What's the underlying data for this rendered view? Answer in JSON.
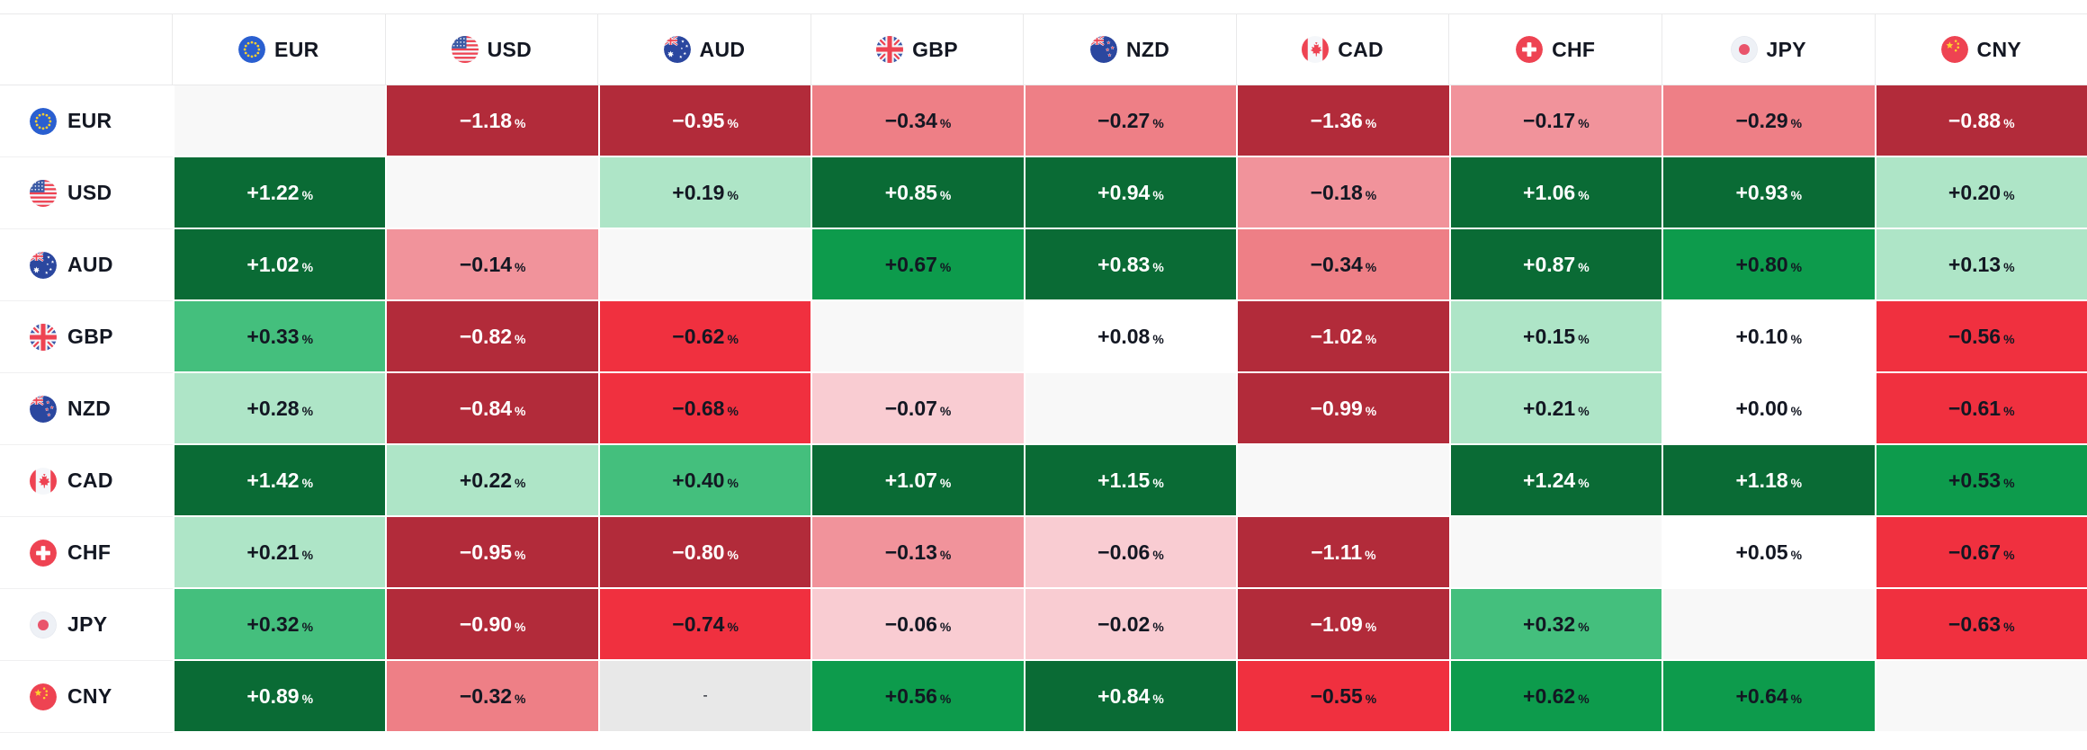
{
  "widget": {
    "unit_suffix": "%",
    "na_text": "-"
  },
  "currencies": [
    "EUR",
    "USD",
    "AUD",
    "GBP",
    "NZD",
    "CAD",
    "CHF",
    "JPY",
    "CNY"
  ],
  "icons": [
    "eur-flag-icon",
    "usd-flag-icon",
    "aud-flag-icon",
    "gbp-flag-icon",
    "nzd-flag-icon",
    "cad-flag-icon",
    "chf-flag-icon",
    "jpy-flag-icon",
    "cny-flag-icon"
  ],
  "palette": {
    "g5": {
      "bg": "#0a6b35",
      "fg": "#ffffff"
    },
    "g4": {
      "bg": "#0d9b4c",
      "fg": "#131722"
    },
    "g3": {
      "bg": "#44bf7d",
      "fg": "#131722"
    },
    "g2": {
      "bg": "#aee5c7",
      "fg": "#131722"
    },
    "n0": {
      "bg": "#ffffff",
      "fg": "#131722"
    },
    "p1": {
      "bg": "#f9ccd2",
      "fg": "#131722"
    },
    "p2": {
      "bg": "#f1939b",
      "fg": "#131722"
    },
    "p3": {
      "bg": "#ee7f86",
      "fg": "#131722"
    },
    "r4": {
      "bg": "#f0303f",
      "fg": "#131722"
    },
    "r5": {
      "bg": "#b22b3a",
      "fg": "#ffffff"
    },
    "diag": {
      "bg": "#f8f8f8",
      "fg": "#131722"
    },
    "na": {
      "bg": "#e8e8e8",
      "fg": "#131722"
    }
  },
  "matrix": {
    "rows": [
      {
        "code": "EUR",
        "cells": [
          {
            "text": "",
            "level": "diag"
          },
          {
            "text": "−1.18",
            "level": "r5"
          },
          {
            "text": "−0.95",
            "level": "r5"
          },
          {
            "text": "−0.34",
            "level": "p3"
          },
          {
            "text": "−0.27",
            "level": "p3"
          },
          {
            "text": "−1.36",
            "level": "r5"
          },
          {
            "text": "−0.17",
            "level": "p2"
          },
          {
            "text": "−0.29",
            "level": "p3"
          },
          {
            "text": "−0.88",
            "level": "r5"
          }
        ]
      },
      {
        "code": "USD",
        "cells": [
          {
            "text": "+1.22",
            "level": "g5"
          },
          {
            "text": "",
            "level": "diag"
          },
          {
            "text": "+0.19",
            "level": "g2"
          },
          {
            "text": "+0.85",
            "level": "g5"
          },
          {
            "text": "+0.94",
            "level": "g5"
          },
          {
            "text": "−0.18",
            "level": "p2"
          },
          {
            "text": "+1.06",
            "level": "g5"
          },
          {
            "text": "+0.93",
            "level": "g5"
          },
          {
            "text": "+0.20",
            "level": "g2"
          }
        ]
      },
      {
        "code": "AUD",
        "cells": [
          {
            "text": "+1.02",
            "level": "g5"
          },
          {
            "text": "−0.14",
            "level": "p2"
          },
          {
            "text": "",
            "level": "diag"
          },
          {
            "text": "+0.67",
            "level": "g4"
          },
          {
            "text": "+0.83",
            "level": "g5"
          },
          {
            "text": "−0.34",
            "level": "p3"
          },
          {
            "text": "+0.87",
            "level": "g5"
          },
          {
            "text": "+0.80",
            "level": "g4"
          },
          {
            "text": "+0.13",
            "level": "g2"
          }
        ]
      },
      {
        "code": "GBP",
        "cells": [
          {
            "text": "+0.33",
            "level": "g3"
          },
          {
            "text": "−0.82",
            "level": "r5"
          },
          {
            "text": "−0.62",
            "level": "r4"
          },
          {
            "text": "",
            "level": "diag"
          },
          {
            "text": "+0.08",
            "level": "n0"
          },
          {
            "text": "−1.02",
            "level": "r5"
          },
          {
            "text": "+0.15",
            "level": "g2"
          },
          {
            "text": "+0.10",
            "level": "n0"
          },
          {
            "text": "−0.56",
            "level": "r4"
          }
        ]
      },
      {
        "code": "NZD",
        "cells": [
          {
            "text": "+0.28",
            "level": "g2"
          },
          {
            "text": "−0.84",
            "level": "r5"
          },
          {
            "text": "−0.68",
            "level": "r4"
          },
          {
            "text": "−0.07",
            "level": "p1"
          },
          {
            "text": "",
            "level": "diag"
          },
          {
            "text": "−0.99",
            "level": "r5"
          },
          {
            "text": "+0.21",
            "level": "g2"
          },
          {
            "text": "+0.00",
            "level": "n0"
          },
          {
            "text": "−0.61",
            "level": "r4"
          }
        ]
      },
      {
        "code": "CAD",
        "cells": [
          {
            "text": "+1.42",
            "level": "g5"
          },
          {
            "text": "+0.22",
            "level": "g2"
          },
          {
            "text": "+0.40",
            "level": "g3"
          },
          {
            "text": "+1.07",
            "level": "g5"
          },
          {
            "text": "+1.15",
            "level": "g5"
          },
          {
            "text": "",
            "level": "diag"
          },
          {
            "text": "+1.24",
            "level": "g5"
          },
          {
            "text": "+1.18",
            "level": "g5"
          },
          {
            "text": "+0.53",
            "level": "g4"
          }
        ]
      },
      {
        "code": "CHF",
        "cells": [
          {
            "text": "+0.21",
            "level": "g2"
          },
          {
            "text": "−0.95",
            "level": "r5"
          },
          {
            "text": "−0.80",
            "level": "r5"
          },
          {
            "text": "−0.13",
            "level": "p2"
          },
          {
            "text": "−0.06",
            "level": "p1"
          },
          {
            "text": "−1.11",
            "level": "r5"
          },
          {
            "text": "",
            "level": "diag"
          },
          {
            "text": "+0.05",
            "level": "n0"
          },
          {
            "text": "−0.67",
            "level": "r4"
          }
        ]
      },
      {
        "code": "JPY",
        "cells": [
          {
            "text": "+0.32",
            "level": "g3"
          },
          {
            "text": "−0.90",
            "level": "r5"
          },
          {
            "text": "−0.74",
            "level": "r4"
          },
          {
            "text": "−0.06",
            "level": "p1"
          },
          {
            "text": "−0.02",
            "level": "p1"
          },
          {
            "text": "−1.09",
            "level": "r5"
          },
          {
            "text": "+0.32",
            "level": "g3"
          },
          {
            "text": "",
            "level": "diag"
          },
          {
            "text": "−0.63",
            "level": "r4"
          }
        ]
      },
      {
        "code": "CNY",
        "cells": [
          {
            "text": "+0.89",
            "level": "g5"
          },
          {
            "text": "−0.32",
            "level": "p3"
          },
          {
            "text": "-",
            "level": "na"
          },
          {
            "text": "+0.56",
            "level": "g4"
          },
          {
            "text": "+0.84",
            "level": "g5"
          },
          {
            "text": "−0.55",
            "level": "r4"
          },
          {
            "text": "+0.62",
            "level": "g4"
          },
          {
            "text": "+0.64",
            "level": "g4"
          },
          {
            "text": "",
            "level": "diag"
          }
        ]
      }
    ]
  },
  "chart_data": {
    "type": "heatmap",
    "x_labels": [
      "EUR",
      "USD",
      "AUD",
      "GBP",
      "NZD",
      "CAD",
      "CHF",
      "JPY",
      "CNY"
    ],
    "y_labels": [
      "EUR",
      "USD",
      "AUD",
      "GBP",
      "NZD",
      "CAD",
      "CHF",
      "JPY",
      "CNY"
    ],
    "unit": "%",
    "values": [
      [
        null,
        -1.18,
        -0.95,
        -0.34,
        -0.27,
        -1.36,
        -0.17,
        -0.29,
        -0.88
      ],
      [
        1.22,
        null,
        0.19,
        0.85,
        0.94,
        -0.18,
        1.06,
        0.93,
        0.2
      ],
      [
        1.02,
        -0.14,
        null,
        0.67,
        0.83,
        -0.34,
        0.87,
        0.8,
        0.13
      ],
      [
        0.33,
        -0.82,
        -0.62,
        null,
        0.08,
        -1.02,
        0.15,
        0.1,
        -0.56
      ],
      [
        0.28,
        -0.84,
        -0.68,
        -0.07,
        null,
        -0.99,
        0.21,
        0.0,
        -0.61
      ],
      [
        1.42,
        0.22,
        0.4,
        1.07,
        1.15,
        null,
        1.24,
        1.18,
        0.53
      ],
      [
        0.21,
        -0.95,
        -0.8,
        -0.13,
        -0.06,
        -1.11,
        null,
        0.05,
        -0.67
      ],
      [
        0.32,
        -0.9,
        -0.74,
        -0.06,
        -0.02,
        -1.09,
        0.32,
        null,
        -0.63
      ],
      [
        0.89,
        -0.32,
        null,
        0.56,
        0.84,
        -0.55,
        0.62,
        0.64,
        null
      ]
    ],
    "missing_cells": [
      {
        "row": "CNY",
        "col": "AUD",
        "display": "-"
      }
    ],
    "color_scale": {
      "positive_strong": "#0a6b35",
      "positive": "#0d9b4c",
      "positive_mid": "#44bf7d",
      "positive_light": "#aee5c7",
      "neutral": "#ffffff",
      "negative_light": "#f9ccd2",
      "negative_mid": "#f1939b",
      "negative": "#f0303f",
      "negative_strong": "#b22b3a"
    },
    "grid": false,
    "legend_position": "none"
  }
}
